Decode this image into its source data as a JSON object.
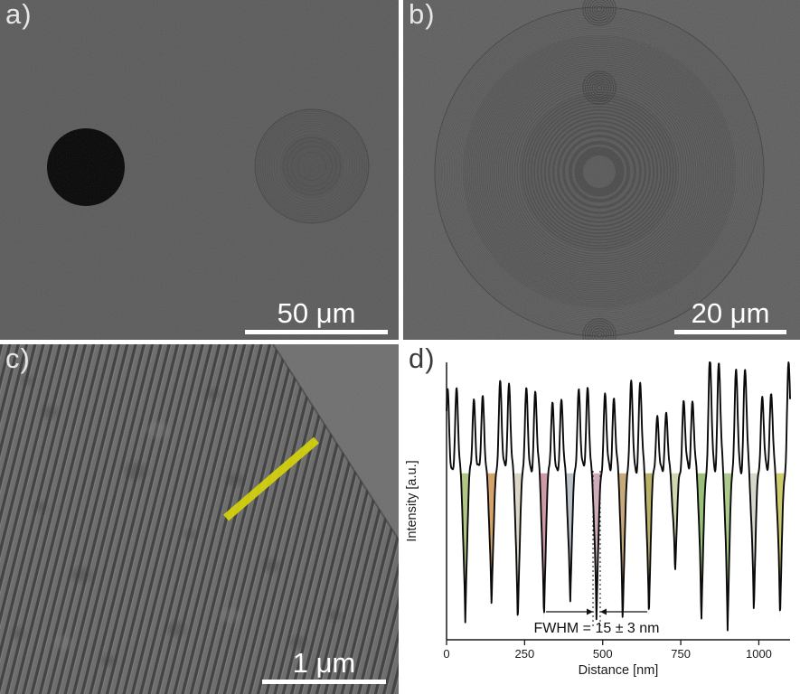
{
  "panels": {
    "a": {
      "label": "a)",
      "scale_bar_label": "50 μm"
    },
    "b": {
      "label": "b)",
      "scale_bar_label": "20 μm"
    },
    "c": {
      "label": "c)",
      "scale_bar_label": "1 μm"
    },
    "d": {
      "label": "d)"
    }
  },
  "colors": {
    "sem_background": "#5a5a5a",
    "profile_marker": "#d8d500",
    "scale_bar": "#ffffff",
    "curve": "#0a0a0a"
  },
  "chart_data": {
    "type": "line",
    "title": "",
    "xlabel": "Distance [nm]",
    "ylabel": "Intensity [a.u.]",
    "xlim": [
      0,
      1100
    ],
    "x_ticks": [
      0,
      250,
      500,
      750,
      1000
    ],
    "grid": false,
    "legend": false,
    "baseline": 0.6,
    "period_nm": 84,
    "valley_halfwidth_nm": 18,
    "annotation": {
      "text": "FWHM = 15 ± 3 nm",
      "x1_nm": 469,
      "x2_nm": 492
    },
    "valleys": [
      {
        "x": 60,
        "bottom": 0.05,
        "color": "#a9bf77"
      },
      {
        "x": 144,
        "bottom": 0.09,
        "color": "#d1995c"
      },
      {
        "x": 228,
        "bottom": 0.04,
        "color": "#d8d2c0"
      },
      {
        "x": 312,
        "bottom": 0.07,
        "color": "#c98f9b"
      },
      {
        "x": 396,
        "bottom": 0.11,
        "color": "#b4bcc4"
      },
      {
        "x": 480,
        "bottom": 0.05,
        "color": "#c9a3b2"
      },
      {
        "x": 564,
        "bottom": 0.06,
        "color": "#c2a06b"
      },
      {
        "x": 648,
        "bottom": 0.08,
        "color": "#b1a855"
      },
      {
        "x": 732,
        "bottom": 0.22,
        "color": "#cbd3a6"
      },
      {
        "x": 816,
        "bottom": 0.05,
        "color": "#8fba6e"
      },
      {
        "x": 900,
        "bottom": 0.04,
        "color": "#a2c47f"
      },
      {
        "x": 984,
        "bottom": 0.1,
        "color": "#d3d3c8"
      },
      {
        "x": 1068,
        "bottom": 0.06,
        "color": "#c6c75e"
      }
    ],
    "peak_heights": [
      0.88,
      0.86,
      0.92,
      0.88,
      0.84,
      0.9,
      0.87,
      0.91,
      0.8,
      0.86,
      1.0,
      0.96,
      0.88,
      1.0
    ]
  }
}
